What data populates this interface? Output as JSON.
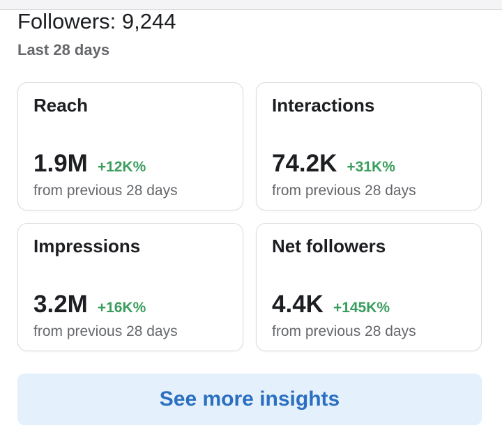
{
  "header": {
    "followers_title": "Followers: 9,244",
    "period": "Last 28 days"
  },
  "metrics": [
    {
      "title": "Reach",
      "value": "1.9M",
      "change": "+12K%",
      "sub": "from previous 28 days"
    },
    {
      "title": "Interactions",
      "value": "74.2K",
      "change": "+31K%",
      "sub": "from previous 28 days"
    },
    {
      "title": "Impressions",
      "value": "3.2M",
      "change": "+16K%",
      "sub": "from previous 28 days"
    },
    {
      "title": "Net followers",
      "value": "4.4K",
      "change": "+145K%",
      "sub": "from previous 28 days"
    }
  ],
  "actions": {
    "see_more_label": "See more insights"
  },
  "colors": {
    "positive_change": "#3a9d5d",
    "button_background": "#e4f0fb",
    "button_text": "#2a6fc0",
    "secondary_text": "#65676b"
  }
}
